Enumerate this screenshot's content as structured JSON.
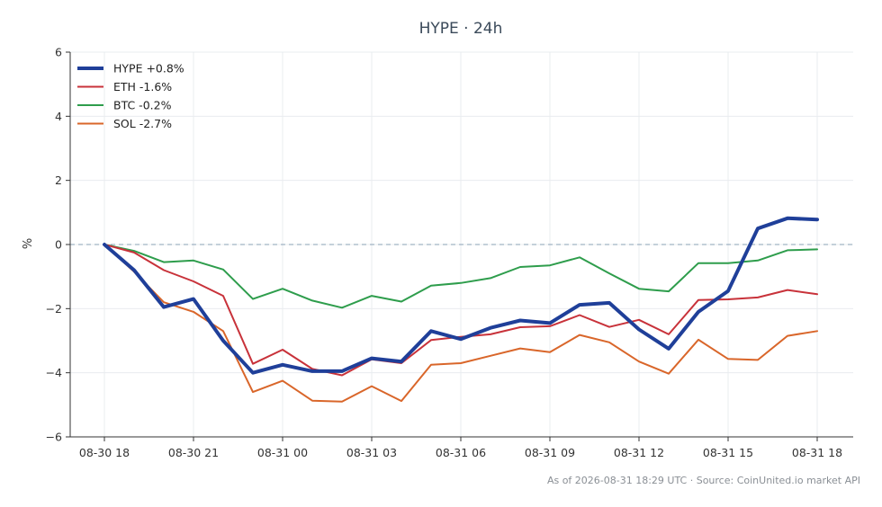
{
  "chart_data": {
    "type": "line",
    "title": "HYPE · 24h",
    "ylabel": "%",
    "ylim": [
      -6,
      6
    ],
    "yticks": [
      -6,
      -4,
      -2,
      0,
      2,
      4,
      6
    ],
    "ytick_labels": [
      "−6",
      "−4",
      "−2",
      "0",
      "2",
      "4",
      "6"
    ],
    "xticks": [
      {
        "x": 0,
        "label": "08-30 18"
      },
      {
        "x": 3,
        "label": "08-30 21"
      },
      {
        "x": 6,
        "label": "08-31 00"
      },
      {
        "x": 9,
        "label": "08-31 03"
      },
      {
        "x": 12,
        "label": "08-31 06"
      },
      {
        "x": 15,
        "label": "08-31 09"
      },
      {
        "x": 18,
        "label": "08-31 12"
      },
      {
        "x": 21,
        "label": "08-31 15"
      },
      {
        "x": 24,
        "label": "08-31 18"
      }
    ],
    "grid": true,
    "zero_line": true,
    "legend_position": "top-left",
    "x": [
      0,
      1,
      2,
      3,
      4,
      5,
      6,
      7,
      8,
      9,
      10,
      11,
      12,
      13,
      14,
      15,
      16,
      17,
      18,
      19,
      20,
      21,
      22,
      23,
      24
    ],
    "series": [
      {
        "name": "HYPE",
        "legend": "HYPE +0.8%",
        "color": "#1f3f99",
        "width": 4,
        "values": [
          0.0,
          -0.8,
          -1.95,
          -1.7,
          -3.0,
          -4.0,
          -3.75,
          -3.95,
          -3.95,
          -3.55,
          -3.65,
          -2.7,
          -2.95,
          -2.6,
          -2.37,
          -2.45,
          -1.88,
          -1.82,
          -2.65,
          -3.25,
          -2.1,
          -1.45,
          0.5,
          0.82,
          0.78
        ]
      },
      {
        "name": "ETH",
        "legend": "ETH -1.6%",
        "color": "#c8323a",
        "width": 2,
        "values": [
          0.0,
          -0.25,
          -0.8,
          -1.15,
          -1.6,
          -3.72,
          -3.28,
          -3.88,
          -4.08,
          -3.58,
          -3.7,
          -2.98,
          -2.88,
          -2.8,
          -2.58,
          -2.55,
          -2.2,
          -2.57,
          -2.35,
          -2.8,
          -1.73,
          -1.71,
          -1.65,
          -1.42,
          -1.55
        ]
      },
      {
        "name": "BTC",
        "legend": "BTC -0.2%",
        "color": "#2e9d4c",
        "width": 2,
        "values": [
          0.0,
          -0.2,
          -0.55,
          -0.5,
          -0.78,
          -1.7,
          -1.38,
          -1.75,
          -1.97,
          -1.6,
          -1.78,
          -1.28,
          -1.2,
          -1.05,
          -0.7,
          -0.65,
          -0.4,
          -0.9,
          -1.38,
          -1.46,
          -0.58,
          -0.58,
          -0.5,
          -0.18,
          -0.15
        ]
      },
      {
        "name": "SOL",
        "legend": "SOL -2.7%",
        "color": "#d9662a",
        "width": 2,
        "values": [
          0.0,
          -0.85,
          -1.8,
          -2.1,
          -2.7,
          -4.6,
          -4.25,
          -4.87,
          -4.9,
          -4.42,
          -4.88,
          -3.75,
          -3.7,
          -3.47,
          -3.24,
          -3.36,
          -2.82,
          -3.05,
          -3.65,
          -4.03,
          -2.97,
          -3.57,
          -3.6,
          -2.85,
          -2.7
        ]
      }
    ]
  },
  "footer": "As of 2026-08-31 18:29 UTC · Source: CoinUnited.io market API"
}
